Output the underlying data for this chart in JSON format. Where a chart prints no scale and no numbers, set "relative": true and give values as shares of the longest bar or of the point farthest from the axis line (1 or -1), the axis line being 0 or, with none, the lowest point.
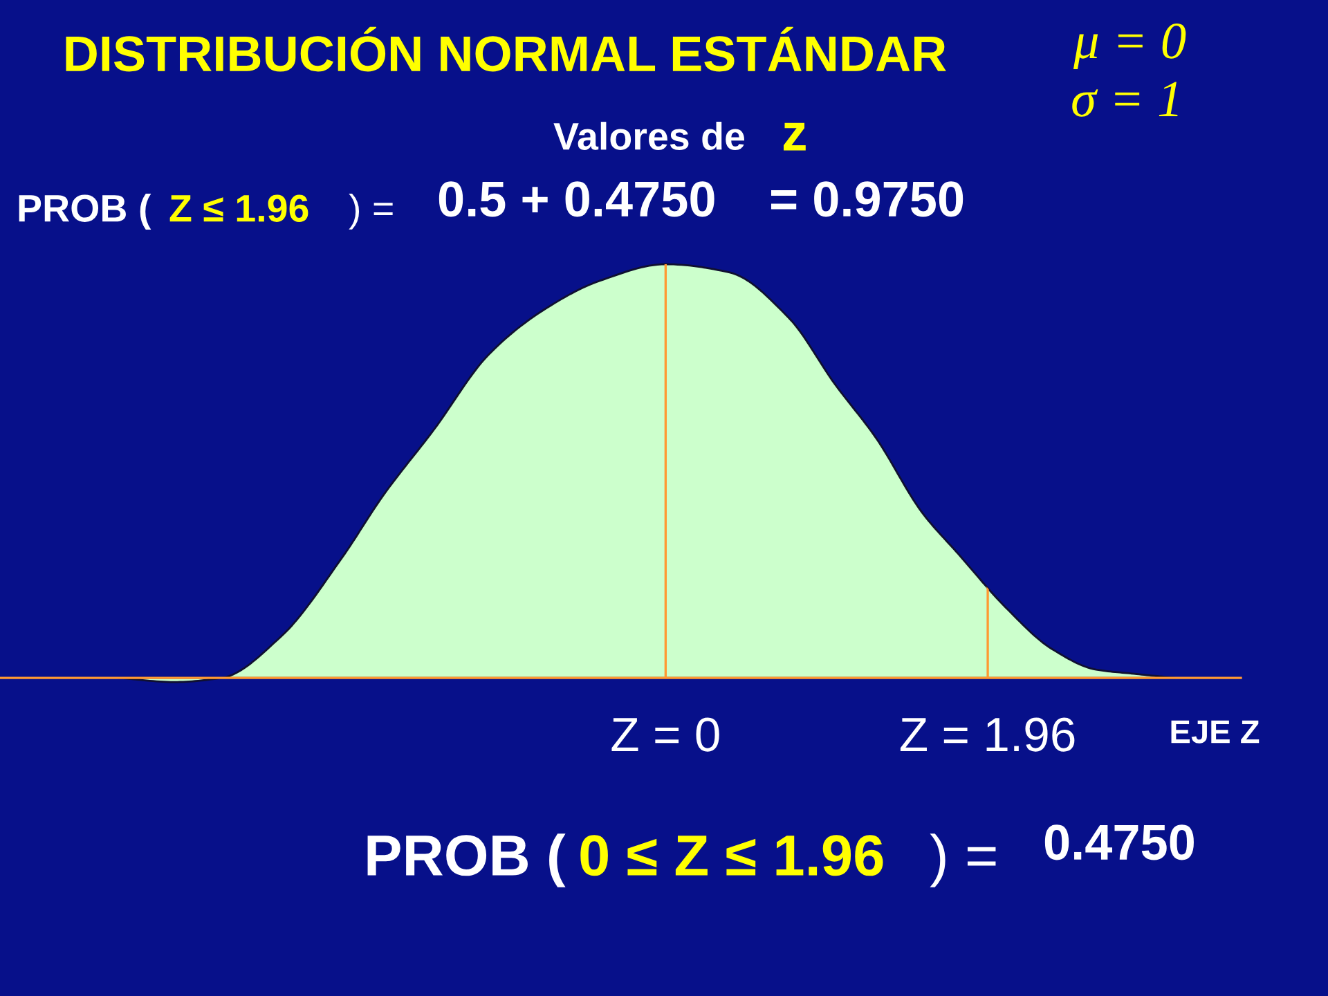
{
  "chart_data": {
    "type": "area",
    "title": "DISTRIBUCIÓN NORMAL ESTÁNDAR",
    "xlabel": "EJE Z",
    "relative": true,
    "x": [
      -3.33,
      -2.99,
      -2.7,
      -2.34,
      -1.97,
      -1.72,
      -1.41,
      -1.08,
      -0.74,
      -0.4,
      0,
      0.39,
      0.75,
      1.03,
      1.28,
      1.56,
      1.78,
      2.07,
      2.35,
      2.62,
      2.85,
      3.1
    ],
    "series": [
      {
        "color": "#ccffcc",
        "values": [
          0,
          -0.01,
          0,
          0.1,
          0.29,
          0.44,
          0.6,
          0.78,
          0.89,
          0.96,
          1,
          0.98,
          0.87,
          0.71,
          0.58,
          0.4,
          0.3,
          0.17,
          0.07,
          0.02,
          0.01,
          0
        ]
      }
    ],
    "xlim": [
      -4.05,
      3.5
    ],
    "xticks": [
      {
        "value": 0,
        "label": "Z = 0"
      },
      {
        "value": 1.96,
        "label": "Z = 1.96"
      }
    ],
    "ref_lines": [
      {
        "axis": "x",
        "value": 0,
        "color": "#ff9933"
      },
      {
        "axis": "x",
        "value": 1.96,
        "color": "#ff9933"
      }
    ],
    "annotations": [
      "μ = 0",
      "σ = 1",
      "Valores de",
      "z",
      "PROB (",
      "Z ≤ 1.96",
      ") =",
      "0.5 + 0.4750",
      "= 0.9750",
      "PROB (",
      "0 ≤ Z ≤ 1.96",
      ") =",
      "0.4750"
    ]
  }
}
